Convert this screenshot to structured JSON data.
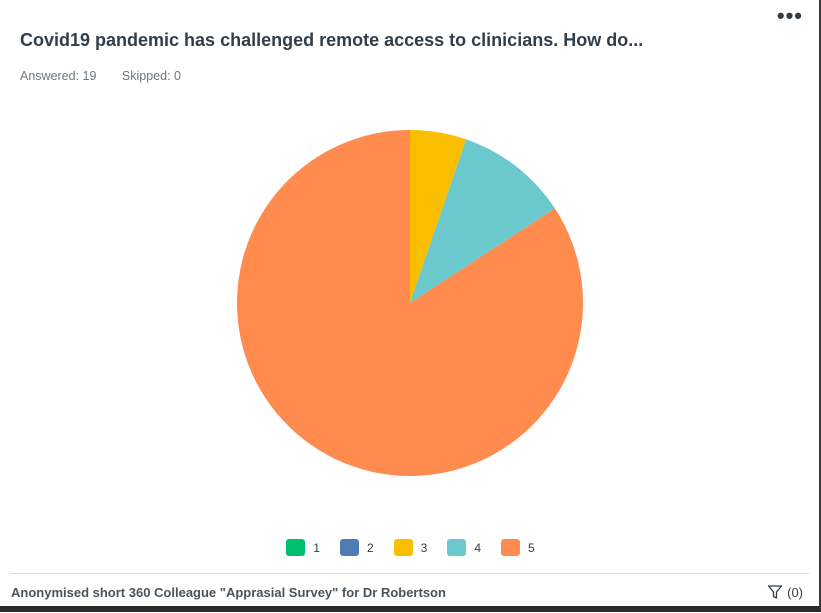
{
  "header": {
    "title": "Covid19 pandemic has challenged remote access to clinicians. How do...",
    "more_icon": "more-horizontal-icon",
    "answered": "Answered: 19",
    "skipped": "Skipped: 0"
  },
  "chart_data": {
    "type": "pie",
    "categories": [
      "1",
      "2",
      "3",
      "4",
      "5"
    ],
    "values": [
      0,
      0,
      1,
      2,
      16
    ],
    "colors": [
      "#00bf6f",
      "#507cb6",
      "#f9be00",
      "#6bc8cd",
      "#ff8b4f"
    ],
    "legend_position": "bottom"
  },
  "footer": {
    "survey_name": "Anonymised short 360 Colleague \"Apprasial Survey\" for Dr Robertson",
    "filter_icon": "filter-icon",
    "filter_count": "(0)"
  }
}
